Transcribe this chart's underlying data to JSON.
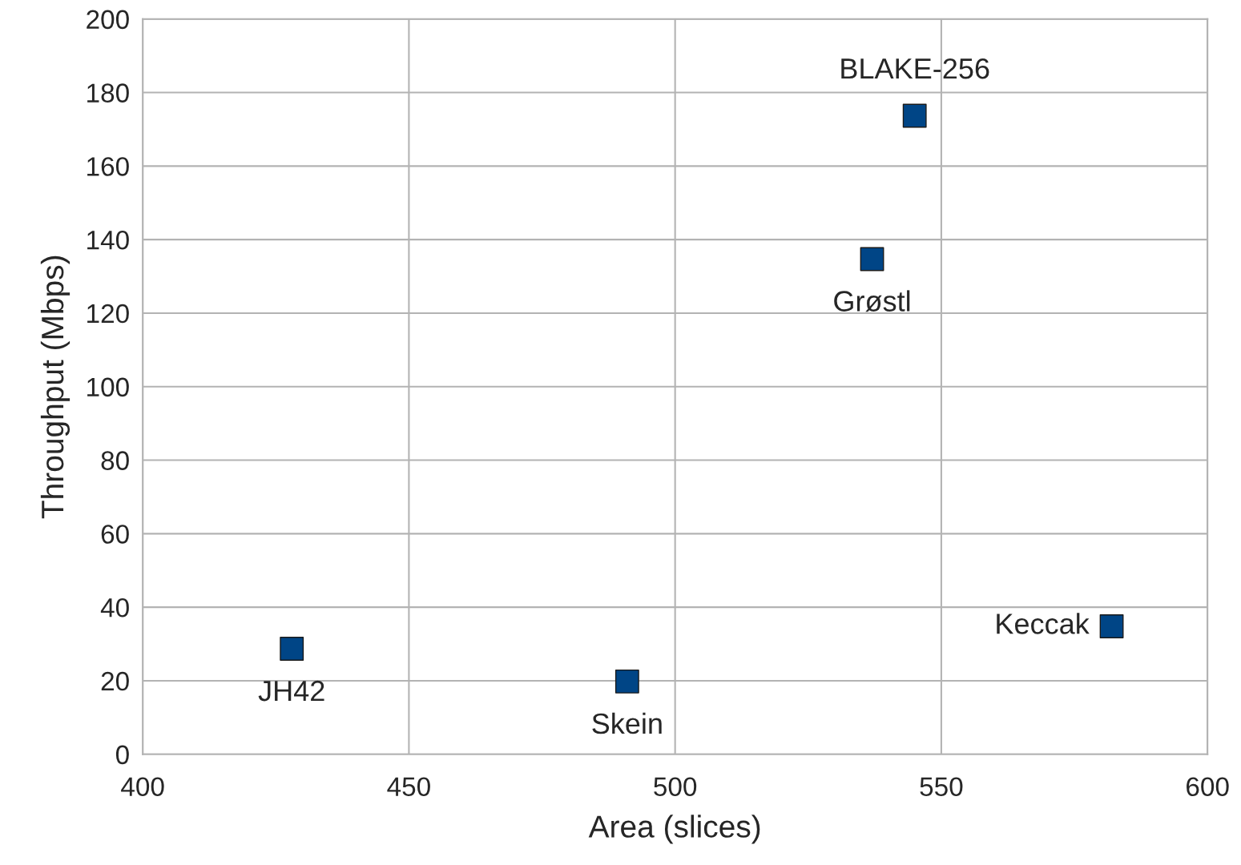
{
  "chart_data": {
    "type": "scatter",
    "xlabel": "Area (slices)",
    "ylabel": "Throughput (Mbps)",
    "x": [
      428,
      491,
      537,
      545,
      582
    ],
    "series": [
      {
        "color": "#004586",
        "values": [
          28.7,
          19.8,
          134.7,
          173.7,
          34.8
        ]
      }
    ],
    "annotations": [
      {
        "text": "JH42",
        "x": 428,
        "y": 28.7
      },
      {
        "text": "Skein",
        "x": 491,
        "y": 19.8
      },
      {
        "text": "Grøstl",
        "x": 537,
        "y": 134.7
      },
      {
        "text": "BLAKE-256",
        "x": 545,
        "y": 173.7
      },
      {
        "text": "Keccak",
        "x": 582,
        "y": 34.8
      }
    ],
    "xlim": [
      400,
      600
    ],
    "xticks": [
      400,
      450,
      500,
      550,
      600
    ],
    "ylim": [
      0,
      200
    ],
    "yticks": [
      0,
      20,
      40,
      60,
      80,
      100,
      120,
      140,
      160,
      180,
      200
    ],
    "grid": true,
    "marker": "square"
  }
}
